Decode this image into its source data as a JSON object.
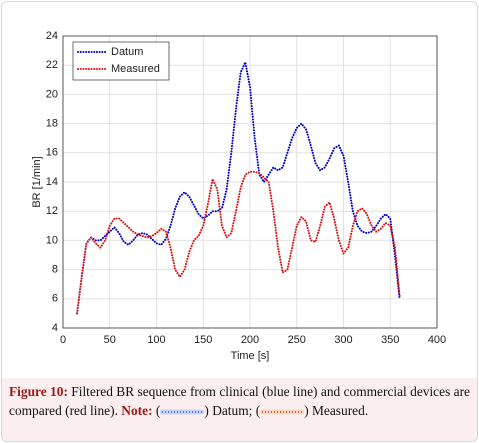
{
  "chart_data": {
    "type": "line",
    "xlabel": "Time [s]",
    "ylabel": "BR [1/min]",
    "xlim": [
      0,
      400
    ],
    "xticks": [
      0,
      50,
      100,
      150,
      200,
      250,
      300,
      350,
      400
    ],
    "ylim": [
      4,
      24
    ],
    "yticks": [
      4,
      6,
      8,
      10,
      12,
      14,
      16,
      18,
      20,
      22,
      24
    ],
    "grid": true,
    "legend": "upper-left",
    "x": [
      15,
      20,
      25,
      30,
      35,
      40,
      45,
      50,
      55,
      60,
      65,
      70,
      75,
      80,
      85,
      90,
      95,
      100,
      105,
      110,
      115,
      120,
      125,
      130,
      135,
      140,
      145,
      150,
      155,
      160,
      165,
      170,
      175,
      180,
      185,
      190,
      195,
      200,
      205,
      210,
      215,
      220,
      225,
      230,
      235,
      240,
      245,
      250,
      255,
      260,
      265,
      270,
      275,
      280,
      285,
      290,
      295,
      300,
      305,
      310,
      315,
      320,
      325,
      330,
      335,
      340,
      345,
      350,
      355,
      360
    ],
    "series": [
      {
        "name": "Datum",
        "color": "#0000cc",
        "values": [
          5.0,
          7.5,
          9.8,
          10.2,
          10.0,
          10.0,
          10.3,
          10.6,
          10.9,
          10.5,
          9.9,
          9.7,
          10.0,
          10.4,
          10.5,
          10.4,
          10.1,
          9.8,
          9.7,
          10.1,
          11.0,
          12.2,
          13.0,
          13.3,
          13.0,
          12.4,
          11.8,
          11.5,
          11.7,
          12.0,
          12.0,
          12.2,
          13.5,
          16.0,
          19.0,
          21.5,
          22.2,
          20.5,
          17.0,
          14.5,
          14.0,
          14.5,
          15.0,
          14.8,
          15.0,
          16.0,
          17.0,
          17.7,
          18.0,
          17.6,
          16.5,
          15.3,
          14.8,
          15.0,
          15.6,
          16.3,
          16.5,
          15.8,
          14.0,
          12.0,
          11.0,
          10.6,
          10.5,
          10.6,
          11.0,
          11.5,
          11.8,
          11.5,
          9.0,
          6.0
        ]
      },
      {
        "name": "Measured",
        "color": "#dd1111",
        "values": [
          5.0,
          7.5,
          9.8,
          10.2,
          9.8,
          9.5,
          10.0,
          11.0,
          11.5,
          11.5,
          11.2,
          10.9,
          10.6,
          10.4,
          10.3,
          10.2,
          10.3,
          10.5,
          10.8,
          10.6,
          9.5,
          8.0,
          7.5,
          8.0,
          9.2,
          10.0,
          10.3,
          11.0,
          12.5,
          14.2,
          13.5,
          11.0,
          10.2,
          10.5,
          12.0,
          13.6,
          14.5,
          14.7,
          14.7,
          14.6,
          14.3,
          14.0,
          12.0,
          9.5,
          7.8,
          8.0,
          9.5,
          11.0,
          11.6,
          11.3,
          10.0,
          9.9,
          11.0,
          12.3,
          12.6,
          11.5,
          10.0,
          9.1,
          9.5,
          11.0,
          12.0,
          12.2,
          11.8,
          11.0,
          10.6,
          10.8,
          11.2,
          11.0,
          9.5,
          6.2
        ]
      }
    ]
  },
  "caption": {
    "label": "Figure 10:",
    "text": "Filtered BR sequence from clinical (blue line) and commercial devices are compared (red line).",
    "note": "Note:",
    "open": "(",
    "close": ")",
    "items": [
      "Datum;",
      "Measured."
    ]
  }
}
